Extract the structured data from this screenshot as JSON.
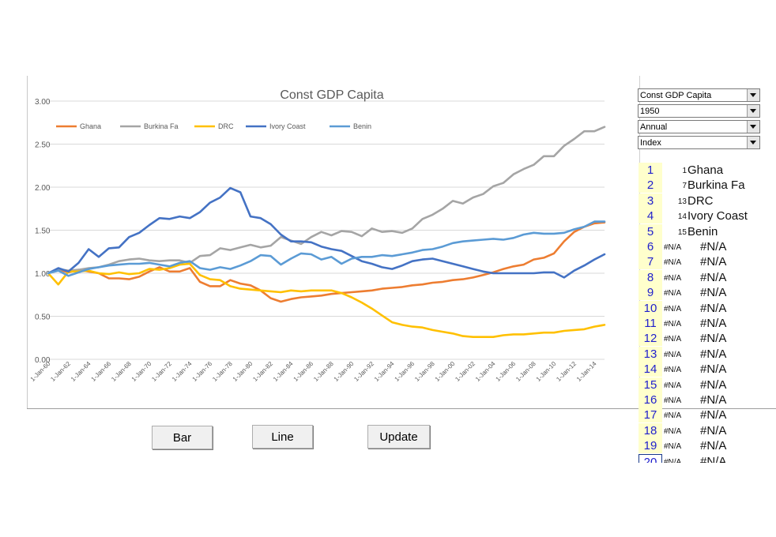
{
  "controls": {
    "dropdowns": [
      "Const GDP Capita",
      "1950",
      "Annual",
      "Index"
    ],
    "buttons": {
      "bar": "Bar",
      "line": "Line",
      "update": "Update"
    }
  },
  "country_list": [
    {
      "row": "1",
      "index": "1",
      "name": "Ghana"
    },
    {
      "row": "2",
      "index": "7",
      "name": "Burkina Fa"
    },
    {
      "row": "3",
      "index": "13",
      "name": "DRC"
    },
    {
      "row": "4",
      "index": "14",
      "name": "Ivory Coast"
    },
    {
      "row": "5",
      "index": "15",
      "name": "Benin"
    },
    {
      "row": "6",
      "index": "#N/A",
      "name": "#N/A"
    },
    {
      "row": "7",
      "index": "#N/A",
      "name": "#N/A"
    },
    {
      "row": "8",
      "index": "#N/A",
      "name": "#N/A"
    },
    {
      "row": "9",
      "index": "#N/A",
      "name": "#N/A"
    },
    {
      "row": "10",
      "index": "#N/A",
      "name": "#N/A"
    },
    {
      "row": "11",
      "index": "#N/A",
      "name": "#N/A"
    },
    {
      "row": "12",
      "index": "#N/A",
      "name": "#N/A"
    },
    {
      "row": "13",
      "index": "#N/A",
      "name": "#N/A"
    },
    {
      "row": "14",
      "index": "#N/A",
      "name": "#N/A"
    },
    {
      "row": "15",
      "index": "#N/A",
      "name": "#N/A"
    },
    {
      "row": "16",
      "index": "#N/A",
      "name": "#N/A"
    },
    {
      "row": "17",
      "index": "#N/A",
      "name": "#N/A"
    },
    {
      "row": "18",
      "index": "#N/A",
      "name": "#N/A"
    },
    {
      "row": "19",
      "index": "#N/A",
      "name": "#N/A"
    },
    {
      "row": "20",
      "index": "#N/A",
      "name": "#N/A"
    }
  ],
  "chart_data": {
    "type": "line",
    "title": "Const GDP Capita",
    "xlabel": "",
    "ylabel": "",
    "ylim": [
      0,
      3
    ],
    "yticks": [
      "0.00",
      "0.50",
      "1.00",
      "1.50",
      "2.00",
      "2.50",
      "3.00"
    ],
    "grid": true,
    "legend": "top-left",
    "x": [
      "1-Jan-60",
      "1-Jan-61",
      "1-Jan-62",
      "1-Jan-63",
      "1-Jan-64",
      "1-Jan-65",
      "1-Jan-66",
      "1-Jan-67",
      "1-Jan-68",
      "1-Jan-69",
      "1-Jan-70",
      "1-Jan-71",
      "1-Jan-72",
      "1-Jan-73",
      "1-Jan-74",
      "1-Jan-75",
      "1-Jan-76",
      "1-Jan-77",
      "1-Jan-78",
      "1-Jan-79",
      "1-Jan-80",
      "1-Jan-81",
      "1-Jan-82",
      "1-Jan-83",
      "1-Jan-84",
      "1-Jan-85",
      "1-Jan-86",
      "1-Jan-87",
      "1-Jan-88",
      "1-Jan-89",
      "1-Jan-90",
      "1-Jan-91",
      "1-Jan-92",
      "1-Jan-93",
      "1-Jan-94",
      "1-Jan-95",
      "1-Jan-96",
      "1-Jan-97",
      "1-Jan-98",
      "1-Jan-99",
      "1-Jan-00",
      "1-Jan-01",
      "1-Jan-02",
      "1-Jan-03",
      "1-Jan-04",
      "1-Jan-05",
      "1-Jan-06",
      "1-Jan-07",
      "1-Jan-08",
      "1-Jan-09",
      "1-Jan-10",
      "1-Jan-11",
      "1-Jan-12",
      "1-Jan-13",
      "1-Jan-14",
      "1-Jan-15"
    ],
    "x_tick_labels": [
      "1-Jan-60",
      "1-Jan-62",
      "1-Jan-64",
      "1-Jan-66",
      "1-Jan-68",
      "1-Jan-70",
      "1-Jan-72",
      "1-Jan-74",
      "1-Jan-76",
      "1-Jan-78",
      "1-Jan-80",
      "1-Jan-82",
      "1-Jan-84",
      "1-Jan-86",
      "1-Jan-88",
      "1-Jan-90",
      "1-Jan-92",
      "1-Jan-94",
      "1-Jan-96",
      "1-Jan-98",
      "1-Jan-00",
      "1-Jan-02",
      "1-Jan-04",
      "1-Jan-06",
      "1-Jan-08",
      "1-Jan-10",
      "1-Jan-12",
      "1-Jan-14"
    ],
    "series": [
      {
        "name": "Ghana",
        "color": "#ed7d31",
        "values": [
          1.0,
          1.04,
          1.01,
          1.04,
          1.02,
          1.0,
          0.94,
          0.94,
          0.93,
          0.96,
          1.02,
          1.07,
          1.02,
          1.02,
          1.06,
          0.9,
          0.85,
          0.85,
          0.92,
          0.88,
          0.86,
          0.8,
          0.71,
          0.67,
          0.7,
          0.72,
          0.73,
          0.74,
          0.76,
          0.77,
          0.78,
          0.79,
          0.8,
          0.82,
          0.83,
          0.84,
          0.86,
          0.87,
          0.89,
          0.9,
          0.92,
          0.93,
          0.95,
          0.98,
          1.01,
          1.05,
          1.08,
          1.1,
          1.16,
          1.18,
          1.23,
          1.37,
          1.48,
          1.54,
          1.58,
          1.59
        ]
      },
      {
        "name": "Burkina Fa",
        "color": "#a5a5a5",
        "values": [
          1.0,
          1.05,
          1.03,
          1.04,
          1.06,
          1.07,
          1.1,
          1.14,
          1.16,
          1.17,
          1.15,
          1.14,
          1.15,
          1.15,
          1.12,
          1.2,
          1.21,
          1.29,
          1.27,
          1.3,
          1.33,
          1.3,
          1.32,
          1.42,
          1.38,
          1.34,
          1.42,
          1.48,
          1.44,
          1.49,
          1.48,
          1.43,
          1.52,
          1.48,
          1.49,
          1.47,
          1.52,
          1.63,
          1.68,
          1.75,
          1.84,
          1.81,
          1.88,
          1.92,
          2.01,
          2.05,
          2.15,
          2.21,
          2.26,
          2.36,
          2.36,
          2.48,
          2.56,
          2.65,
          2.65,
          2.7
        ]
      },
      {
        "name": "DRC",
        "color": "#ffc000",
        "values": [
          1.0,
          0.87,
          1.02,
          1.02,
          1.03,
          1.0,
          0.99,
          1.01,
          0.99,
          1.0,
          1.05,
          1.04,
          1.06,
          1.1,
          1.11,
          0.98,
          0.93,
          0.92,
          0.85,
          0.82,
          0.81,
          0.8,
          0.79,
          0.78,
          0.8,
          0.79,
          0.8,
          0.8,
          0.8,
          0.77,
          0.72,
          0.66,
          0.59,
          0.51,
          0.43,
          0.4,
          0.38,
          0.37,
          0.34,
          0.32,
          0.3,
          0.27,
          0.26,
          0.26,
          0.26,
          0.28,
          0.29,
          0.29,
          0.3,
          0.31,
          0.31,
          0.33,
          0.34,
          0.35,
          0.38,
          0.4
        ]
      },
      {
        "name": "Ivory Coast",
        "color": "#4472c4",
        "values": [
          1.0,
          1.06,
          1.02,
          1.12,
          1.28,
          1.19,
          1.29,
          1.3,
          1.42,
          1.47,
          1.56,
          1.64,
          1.63,
          1.66,
          1.64,
          1.71,
          1.82,
          1.88,
          1.99,
          1.94,
          1.66,
          1.64,
          1.57,
          1.45,
          1.37,
          1.37,
          1.36,
          1.31,
          1.28,
          1.26,
          1.2,
          1.14,
          1.11,
          1.07,
          1.05,
          1.09,
          1.14,
          1.16,
          1.17,
          1.14,
          1.11,
          1.08,
          1.05,
          1.02,
          1.0,
          1.0,
          1.0,
          1.0,
          1.0,
          1.01,
          1.01,
          0.95,
          1.03,
          1.09,
          1.16,
          1.22
        ]
      },
      {
        "name": "Benin",
        "color": "#5b9bd5",
        "values": [
          1.0,
          1.03,
          0.97,
          1.01,
          1.05,
          1.07,
          1.09,
          1.1,
          1.11,
          1.11,
          1.12,
          1.1,
          1.08,
          1.12,
          1.14,
          1.06,
          1.04,
          1.07,
          1.05,
          1.09,
          1.14,
          1.21,
          1.2,
          1.1,
          1.17,
          1.23,
          1.22,
          1.16,
          1.19,
          1.11,
          1.17,
          1.19,
          1.19,
          1.21,
          1.2,
          1.22,
          1.24,
          1.27,
          1.28,
          1.31,
          1.35,
          1.37,
          1.38,
          1.39,
          1.4,
          1.39,
          1.41,
          1.45,
          1.47,
          1.46,
          1.46,
          1.47,
          1.51,
          1.54,
          1.6,
          1.6
        ]
      }
    ]
  }
}
